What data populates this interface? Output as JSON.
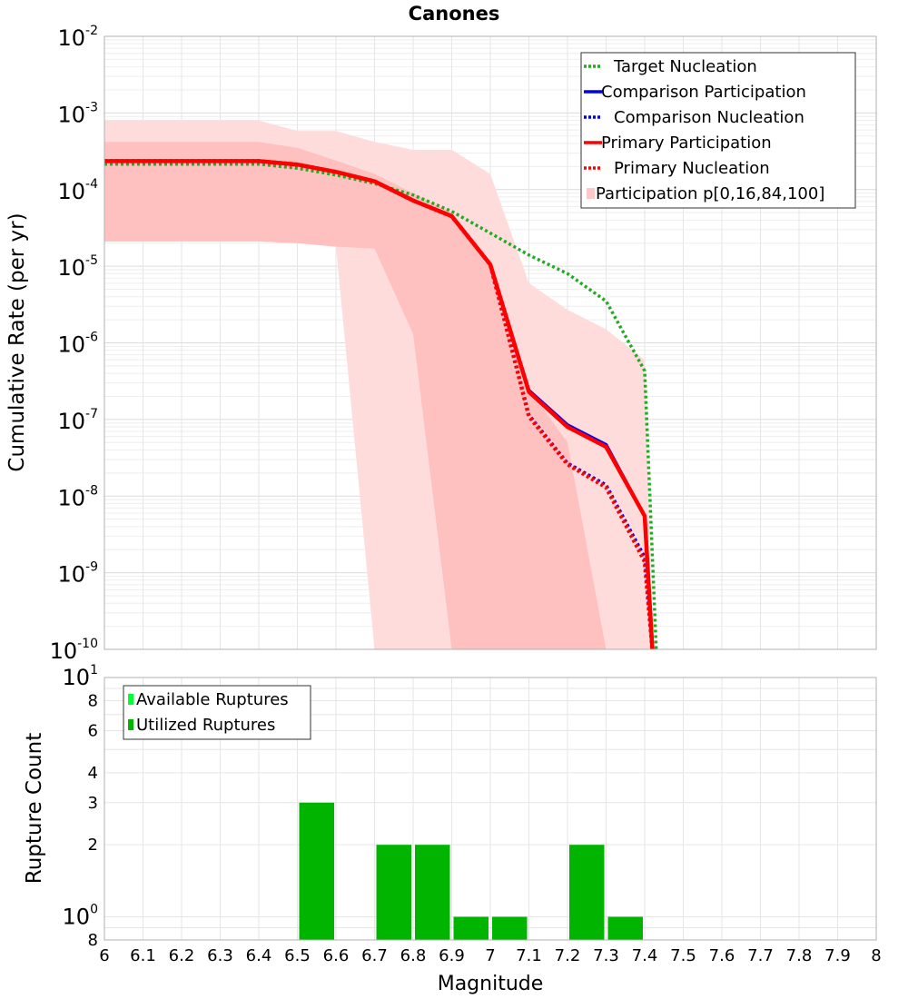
{
  "chart_data": [
    {
      "type": "line",
      "title": "Canones",
      "xlabel": "",
      "ylabel": "Cumulative Rate (per yr)",
      "yscale": "log",
      "xlim": [
        6,
        8
      ],
      "ylim": [
        1e-10,
        0.01
      ],
      "y_tick_exponents": [
        -2,
        -3,
        -4,
        -5,
        -6,
        -7,
        -8,
        -9,
        -10
      ],
      "y_tick_base": "10",
      "legend": {
        "position": "top-right",
        "entries": [
          {
            "label": "Target Nucleation",
            "color": "#22aa22",
            "style": "dotted"
          },
          {
            "label": "Comparison Participation",
            "color": "#0000ee",
            "style": "solid"
          },
          {
            "label": "Comparison Nucleation",
            "color": "#0000ee",
            "style": "dotted"
          },
          {
            "label": "Primary Participation",
            "color": "#ff0000",
            "style": "solid"
          },
          {
            "label": "Primary Nucleation",
            "color": "#ff0000",
            "style": "dotted"
          },
          {
            "label": "Participation p[0,16,84,100]",
            "color": "#ffc8c8",
            "style": "box"
          }
        ]
      },
      "bands": [
        {
          "name": "Participation p[0,100]",
          "color": "#ffdcdc",
          "x": [
            6.0,
            6.1,
            6.2,
            6.3,
            6.4,
            6.5,
            6.6,
            6.7,
            6.8,
            6.9,
            7.0,
            7.1,
            7.2,
            7.3,
            7.4,
            7.42
          ],
          "upper": [
            0.0008,
            0.0008,
            0.0008,
            0.0008,
            0.0008,
            0.00058,
            0.00058,
            0.00042,
            0.00033,
            0.00033,
            0.00016,
            6e-06,
            2.7e-06,
            1.5e-06,
            6e-07,
            1e-10
          ],
          "lower": [
            2.1e-05,
            2.1e-05,
            2.1e-05,
            2.1e-05,
            2.1e-05,
            2e-05,
            1.8e-05,
            1e-10,
            1e-10,
            1e-10,
            1e-10,
            1e-10,
            1e-10,
            1e-10,
            1e-10,
            1e-10
          ]
        },
        {
          "name": "Participation p[16,84]",
          "color": "#ffc0c0",
          "x": [
            6.0,
            6.1,
            6.2,
            6.3,
            6.4,
            6.5,
            6.6,
            6.7,
            6.8,
            6.9,
            7.0,
            7.1,
            7.2,
            7.3
          ],
          "upper": [
            0.00042,
            0.00042,
            0.00042,
            0.00042,
            0.00042,
            0.00035,
            0.00024,
            0.00016,
            9e-05,
            5e-05,
            1.1e-05,
            2.5e-07,
            5e-08,
            1e-10
          ],
          "lower": [
            2.1e-05,
            2.1e-05,
            2.1e-05,
            2.1e-05,
            2.1e-05,
            2e-05,
            1.8e-05,
            1.7e-05,
            1.3e-06,
            1e-10,
            1e-10,
            1e-10,
            1e-10,
            1e-10
          ]
        }
      ],
      "series": [
        {
          "name": "Target Nucleation",
          "color": "#22aa22",
          "style": "dotted",
          "width": 3.5,
          "x": [
            6.0,
            6.1,
            6.2,
            6.3,
            6.4,
            6.5,
            6.6,
            6.7,
            6.8,
            6.9,
            7.0,
            7.1,
            7.2,
            7.3,
            7.4,
            7.43
          ],
          "y": [
            0.000215,
            0.000215,
            0.000215,
            0.000215,
            0.000215,
            0.00019,
            0.000155,
            0.00012,
            8.5e-05,
            5.2e-05,
            2.7e-05,
            1.4e-05,
            8e-06,
            3.5e-06,
            4.3e-07,
            1e-10
          ]
        },
        {
          "name": "Comparison Participation",
          "color": "#0000ee",
          "style": "solid",
          "width": 3.5,
          "x": [
            6.0,
            6.1,
            6.2,
            6.3,
            6.4,
            6.5,
            6.6,
            6.7,
            6.8,
            6.9,
            7.0,
            7.1,
            7.2,
            7.3,
            7.4,
            7.42
          ],
          "y": [
            0.000235,
            0.000235,
            0.000235,
            0.000235,
            0.000235,
            0.000212,
            0.00017,
            0.000128,
            7.2e-05,
            4.5e-05,
            1.05e-05,
            2.4e-07,
            8.5e-08,
            4.7e-08,
            5.5e-09,
            1e-10
          ]
        },
        {
          "name": "Comparison Nucleation",
          "color": "#0000ee",
          "style": "dotted",
          "width": 3.5,
          "x": [
            6.0,
            6.1,
            6.2,
            6.3,
            6.4,
            6.5,
            6.6,
            6.7,
            6.8,
            6.9,
            7.0,
            7.1,
            7.2,
            7.3,
            7.4,
            7.42
          ],
          "y": [
            0.000235,
            0.000235,
            0.000235,
            0.000235,
            0.000235,
            0.000212,
            0.00017,
            0.000128,
            7.2e-05,
            4.5e-05,
            1.05e-05,
            1.15e-07,
            2.7e-08,
            1.4e-08,
            1.6e-09,
            1e-10
          ]
        },
        {
          "name": "Primary Participation",
          "color": "#ff0000",
          "style": "solid",
          "width": 4.5,
          "x": [
            6.0,
            6.1,
            6.2,
            6.3,
            6.4,
            6.5,
            6.6,
            6.7,
            6.8,
            6.9,
            7.0,
            7.1,
            7.2,
            7.3,
            7.4,
            7.42
          ],
          "y": [
            0.000235,
            0.000235,
            0.000235,
            0.000235,
            0.000235,
            0.000212,
            0.00017,
            0.000128,
            7.2e-05,
            4.5e-05,
            1.05e-05,
            2.3e-07,
            8e-08,
            4.4e-08,
            5.5e-09,
            1e-10
          ]
        },
        {
          "name": "Primary Nucleation",
          "color": "#ff0000",
          "style": "dotted",
          "width": 4.5,
          "x": [
            6.0,
            6.1,
            6.2,
            6.3,
            6.4,
            6.5,
            6.6,
            6.7,
            6.8,
            6.9,
            7.0,
            7.1,
            7.2,
            7.3,
            7.4,
            7.42
          ],
          "y": [
            0.000235,
            0.000235,
            0.000235,
            0.000235,
            0.000235,
            0.000212,
            0.00017,
            0.000128,
            7.2e-05,
            4.5e-05,
            1.05e-05,
            1.1e-07,
            2.6e-08,
            1.3e-08,
            1.4e-09,
            1e-10
          ]
        }
      ]
    },
    {
      "type": "bar",
      "title": "",
      "xlabel": "Magnitude",
      "ylabel": "Rupture Count",
      "yscale": "log",
      "xlim": [
        6,
        8
      ],
      "ylim": [
        0.8,
        10
      ],
      "x_ticks": [
        "6",
        "6.1",
        "6.2",
        "6.3",
        "6.4",
        "6.5",
        "6.6",
        "6.7",
        "6.8",
        "6.9",
        "7",
        "7.1",
        "7.2",
        "7.3",
        "7.4",
        "7.5",
        "7.6",
        "7.7",
        "7.8",
        "7.9",
        "8"
      ],
      "y_ticks": [
        {
          "value": 10,
          "label": "10",
          "exp": "1"
        },
        {
          "value": 8,
          "label": "8",
          "exp": ""
        },
        {
          "value": 6,
          "label": "6",
          "exp": ""
        },
        {
          "value": 4,
          "label": "4",
          "exp": ""
        },
        {
          "value": 3,
          "label": "3",
          "exp": ""
        },
        {
          "value": 2,
          "label": "2",
          "exp": ""
        },
        {
          "value": 1,
          "label": "10",
          "exp": "0"
        },
        {
          "value": 0.8,
          "label": "8",
          "exp": ""
        }
      ],
      "legend": {
        "position": "top-left",
        "entries": [
          {
            "label": "Available Ruptures",
            "color": "#00ff33"
          },
          {
            "label": "Utilized Ruptures",
            "color": "#00b400"
          }
        ]
      },
      "series": [
        {
          "name": "Utilized Ruptures",
          "color": "#00b400",
          "x": [
            6.55,
            6.75,
            6.85,
            6.95,
            7.05,
            7.25,
            7.35
          ],
          "values": [
            3,
            2,
            2,
            1,
            1,
            2,
            1
          ]
        }
      ]
    }
  ]
}
